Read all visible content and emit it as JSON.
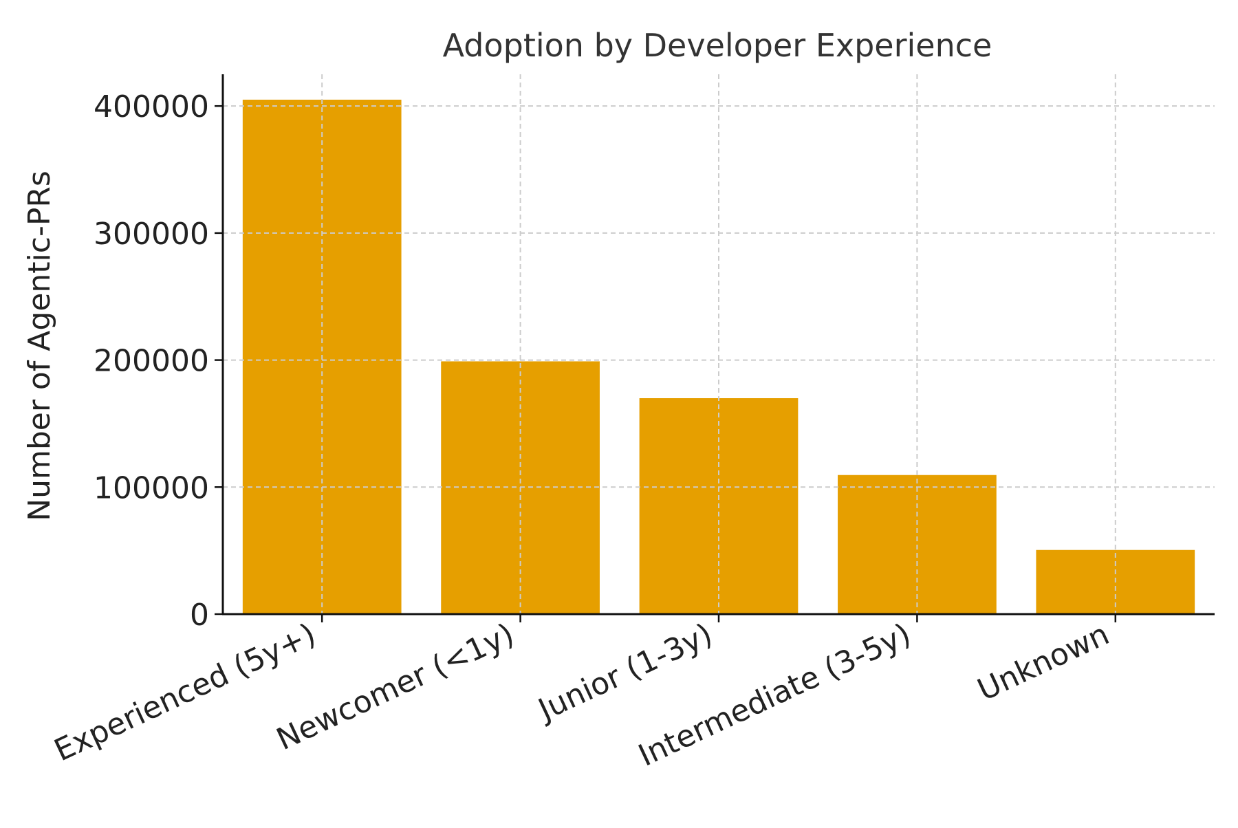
{
  "chart_data": {
    "type": "bar",
    "title": "Adoption by Developer Experience",
    "xlabel": "",
    "ylabel": "Number of Agentic-PRs",
    "categories": [
      "Experienced (5y+)",
      "Newcomer (<1y)",
      "Junior (1-3y)",
      "Intermediate (3-5y)",
      "Unknown"
    ],
    "values": [
      405000,
      199000,
      170000,
      109500,
      50500
    ],
    "ylim": [
      0,
      425000
    ],
    "yticks": [
      {
        "value": 0,
        "label": "0"
      },
      {
        "value": 100000,
        "label": "100000"
      },
      {
        "value": 200000,
        "label": "200000"
      },
      {
        "value": 300000,
        "label": "300000"
      },
      {
        "value": 400000,
        "label": "400000"
      }
    ],
    "grid": true,
    "legend": "none",
    "colors": {
      "bar": "#E69F00",
      "grid": "#cccccc",
      "axis": "#111111",
      "text": "#222222",
      "title": "#333333"
    }
  }
}
